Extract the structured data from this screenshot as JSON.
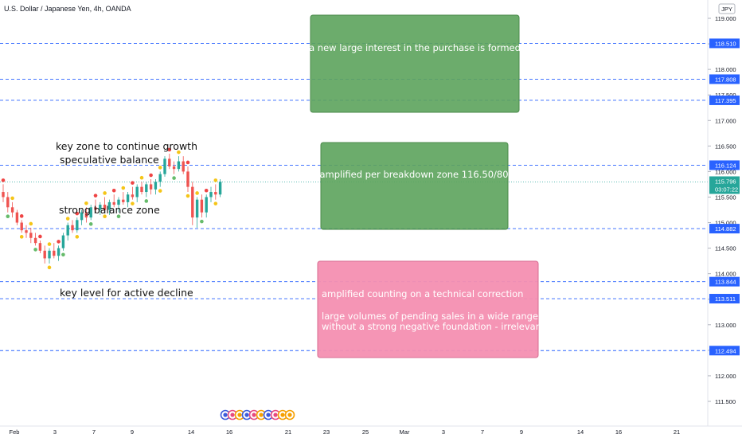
{
  "header": {
    "title": "U.S. Dollar / Japanese Yen, 4h, OANDA",
    "currency_badge": "JPY",
    "countdown": "03:07:22"
  },
  "colors": {
    "up": "#26a69a",
    "down": "#ef5350",
    "dashed_level": "#2962ff",
    "price_label_bg": "#2962ff",
    "note_green": "#5ca35c",
    "note_pink": "#f48fb1",
    "dot_red": "#ef4444",
    "dot_yellow": "#f5c518",
    "dot_green": "#66bb6a",
    "last_price_bg": "#26a69a"
  },
  "chart_data": {
    "type": "candlestick",
    "symbol": "USD/JPY",
    "timeframe": "4h",
    "ylim": [
      111.25,
      119.25
    ],
    "y_ticks": [
      111.5,
      112.0,
      112.5,
      113.0,
      113.5,
      114.0,
      114.5,
      115.0,
      115.5,
      116.0,
      116.5,
      117.0,
      117.5,
      118.0,
      118.5,
      119.0
    ],
    "y_tick_labels": [
      "111.500",
      "112.000",
      "112.500",
      "113.000",
      "113.500",
      "114.000",
      "114.500",
      "115.000",
      "115.500",
      "116.000",
      "116.500",
      "117.000",
      "117.500",
      "118.000",
      "118.500",
      "119.000"
    ],
    "x_tick_labels": [
      "Feb",
      "3",
      "7",
      "9",
      "14",
      "16",
      "21",
      "23",
      "25",
      "Mar",
      "3",
      "7",
      "9",
      "14",
      "16",
      "21"
    ],
    "levels": [
      {
        "value": 118.51,
        "label": "118.510"
      },
      {
        "value": 117.808,
        "label": "117.808"
      },
      {
        "value": 117.395,
        "label": "117.395"
      },
      {
        "value": 116.124,
        "label": "116.124"
      },
      {
        "value": 114.882,
        "label": "114.882"
      },
      {
        "value": 113.844,
        "label": "113.844"
      },
      {
        "value": 113.511,
        "label": "113.511"
      },
      {
        "value": 112.494,
        "label": "112.494"
      }
    ],
    "last_price": {
      "value": 115.796,
      "label": "115.796"
    },
    "candles": [
      {
        "o": 115.6,
        "h": 115.75,
        "l": 115.4,
        "c": 115.5
      },
      {
        "o": 115.5,
        "h": 115.6,
        "l": 115.2,
        "c": 115.3
      },
      {
        "o": 115.3,
        "h": 115.4,
        "l": 115.1,
        "c": 115.2
      },
      {
        "o": 115.2,
        "h": 115.25,
        "l": 114.95,
        "c": 115.0
      },
      {
        "o": 115.0,
        "h": 115.05,
        "l": 114.8,
        "c": 114.85
      },
      {
        "o": 114.85,
        "h": 114.95,
        "l": 114.7,
        "c": 114.8
      },
      {
        "o": 114.8,
        "h": 114.9,
        "l": 114.6,
        "c": 114.7
      },
      {
        "o": 114.7,
        "h": 114.8,
        "l": 114.55,
        "c": 114.6
      },
      {
        "o": 114.6,
        "h": 114.65,
        "l": 114.4,
        "c": 114.45
      },
      {
        "o": 114.45,
        "h": 114.55,
        "l": 114.2,
        "c": 114.3
      },
      {
        "o": 114.3,
        "h": 114.5,
        "l": 114.2,
        "c": 114.45
      },
      {
        "o": 114.45,
        "h": 114.6,
        "l": 114.3,
        "c": 114.35
      },
      {
        "o": 114.35,
        "h": 114.55,
        "l": 114.25,
        "c": 114.5
      },
      {
        "o": 114.5,
        "h": 114.8,
        "l": 114.45,
        "c": 114.75
      },
      {
        "o": 114.75,
        "h": 115.0,
        "l": 114.65,
        "c": 114.95
      },
      {
        "o": 114.95,
        "h": 115.05,
        "l": 114.8,
        "c": 114.85
      },
      {
        "o": 114.85,
        "h": 115.1,
        "l": 114.8,
        "c": 115.05
      },
      {
        "o": 115.05,
        "h": 115.25,
        "l": 114.95,
        "c": 115.2
      },
      {
        "o": 115.2,
        "h": 115.3,
        "l": 115.0,
        "c": 115.1
      },
      {
        "o": 115.1,
        "h": 115.35,
        "l": 115.05,
        "c": 115.3
      },
      {
        "o": 115.3,
        "h": 115.45,
        "l": 115.2,
        "c": 115.25
      },
      {
        "o": 115.25,
        "h": 115.4,
        "l": 115.15,
        "c": 115.35
      },
      {
        "o": 115.35,
        "h": 115.5,
        "l": 115.2,
        "c": 115.25
      },
      {
        "o": 115.25,
        "h": 115.45,
        "l": 115.15,
        "c": 115.4
      },
      {
        "o": 115.4,
        "h": 115.55,
        "l": 115.3,
        "c": 115.35
      },
      {
        "o": 115.35,
        "h": 115.5,
        "l": 115.2,
        "c": 115.45
      },
      {
        "o": 115.45,
        "h": 115.6,
        "l": 115.35,
        "c": 115.4
      },
      {
        "o": 115.4,
        "h": 115.6,
        "l": 115.3,
        "c": 115.55
      },
      {
        "o": 115.55,
        "h": 115.7,
        "l": 115.45,
        "c": 115.5
      },
      {
        "o": 115.5,
        "h": 115.75,
        "l": 115.4,
        "c": 115.7
      },
      {
        "o": 115.7,
        "h": 115.8,
        "l": 115.55,
        "c": 115.6
      },
      {
        "o": 115.6,
        "h": 115.8,
        "l": 115.5,
        "c": 115.75
      },
      {
        "o": 115.75,
        "h": 115.85,
        "l": 115.55,
        "c": 115.65
      },
      {
        "o": 115.65,
        "h": 115.85,
        "l": 115.55,
        "c": 115.8
      },
      {
        "o": 115.8,
        "h": 116.0,
        "l": 115.7,
        "c": 115.95
      },
      {
        "o": 115.95,
        "h": 116.3,
        "l": 115.9,
        "c": 116.25
      },
      {
        "o": 116.25,
        "h": 116.35,
        "l": 116.05,
        "c": 116.1
      },
      {
        "o": 116.1,
        "h": 116.2,
        "l": 115.95,
        "c": 116.05
      },
      {
        "o": 116.05,
        "h": 116.3,
        "l": 116.0,
        "c": 116.2
      },
      {
        "o": 116.2,
        "h": 116.3,
        "l": 115.95,
        "c": 116.0
      },
      {
        "o": 116.0,
        "h": 116.1,
        "l": 115.6,
        "c": 115.7
      },
      {
        "o": 115.7,
        "h": 115.8,
        "l": 114.95,
        "c": 115.1
      },
      {
        "o": 115.1,
        "h": 115.5,
        "l": 114.9,
        "c": 115.45
      },
      {
        "o": 115.45,
        "h": 115.55,
        "l": 115.1,
        "c": 115.2
      },
      {
        "o": 115.2,
        "h": 115.55,
        "l": 115.1,
        "c": 115.5
      },
      {
        "o": 115.5,
        "h": 115.7,
        "l": 115.4,
        "c": 115.6
      },
      {
        "o": 115.6,
        "h": 115.75,
        "l": 115.45,
        "c": 115.55
      },
      {
        "o": 115.55,
        "h": 115.85,
        "l": 115.5,
        "c": 115.8
      }
    ]
  },
  "annotations": {
    "key_zone": "key zone to continue growth",
    "speculative": "speculative balance",
    "strong_balance": "strong balance zone",
    "key_level": "key level for active decline"
  },
  "notes": [
    {
      "color": "green",
      "lines": [
        "a new large interest in the purchase is formed"
      ]
    },
    {
      "color": "green",
      "lines": [
        "amplified per breakdown zone 116.50/80"
      ]
    },
    {
      "color": "pink",
      "lines": [
        "amplified counting on a technical correction",
        "",
        "large volumes of pending sales in a wide range",
        "without a strong negative foundation - irrelevant"
      ]
    }
  ]
}
